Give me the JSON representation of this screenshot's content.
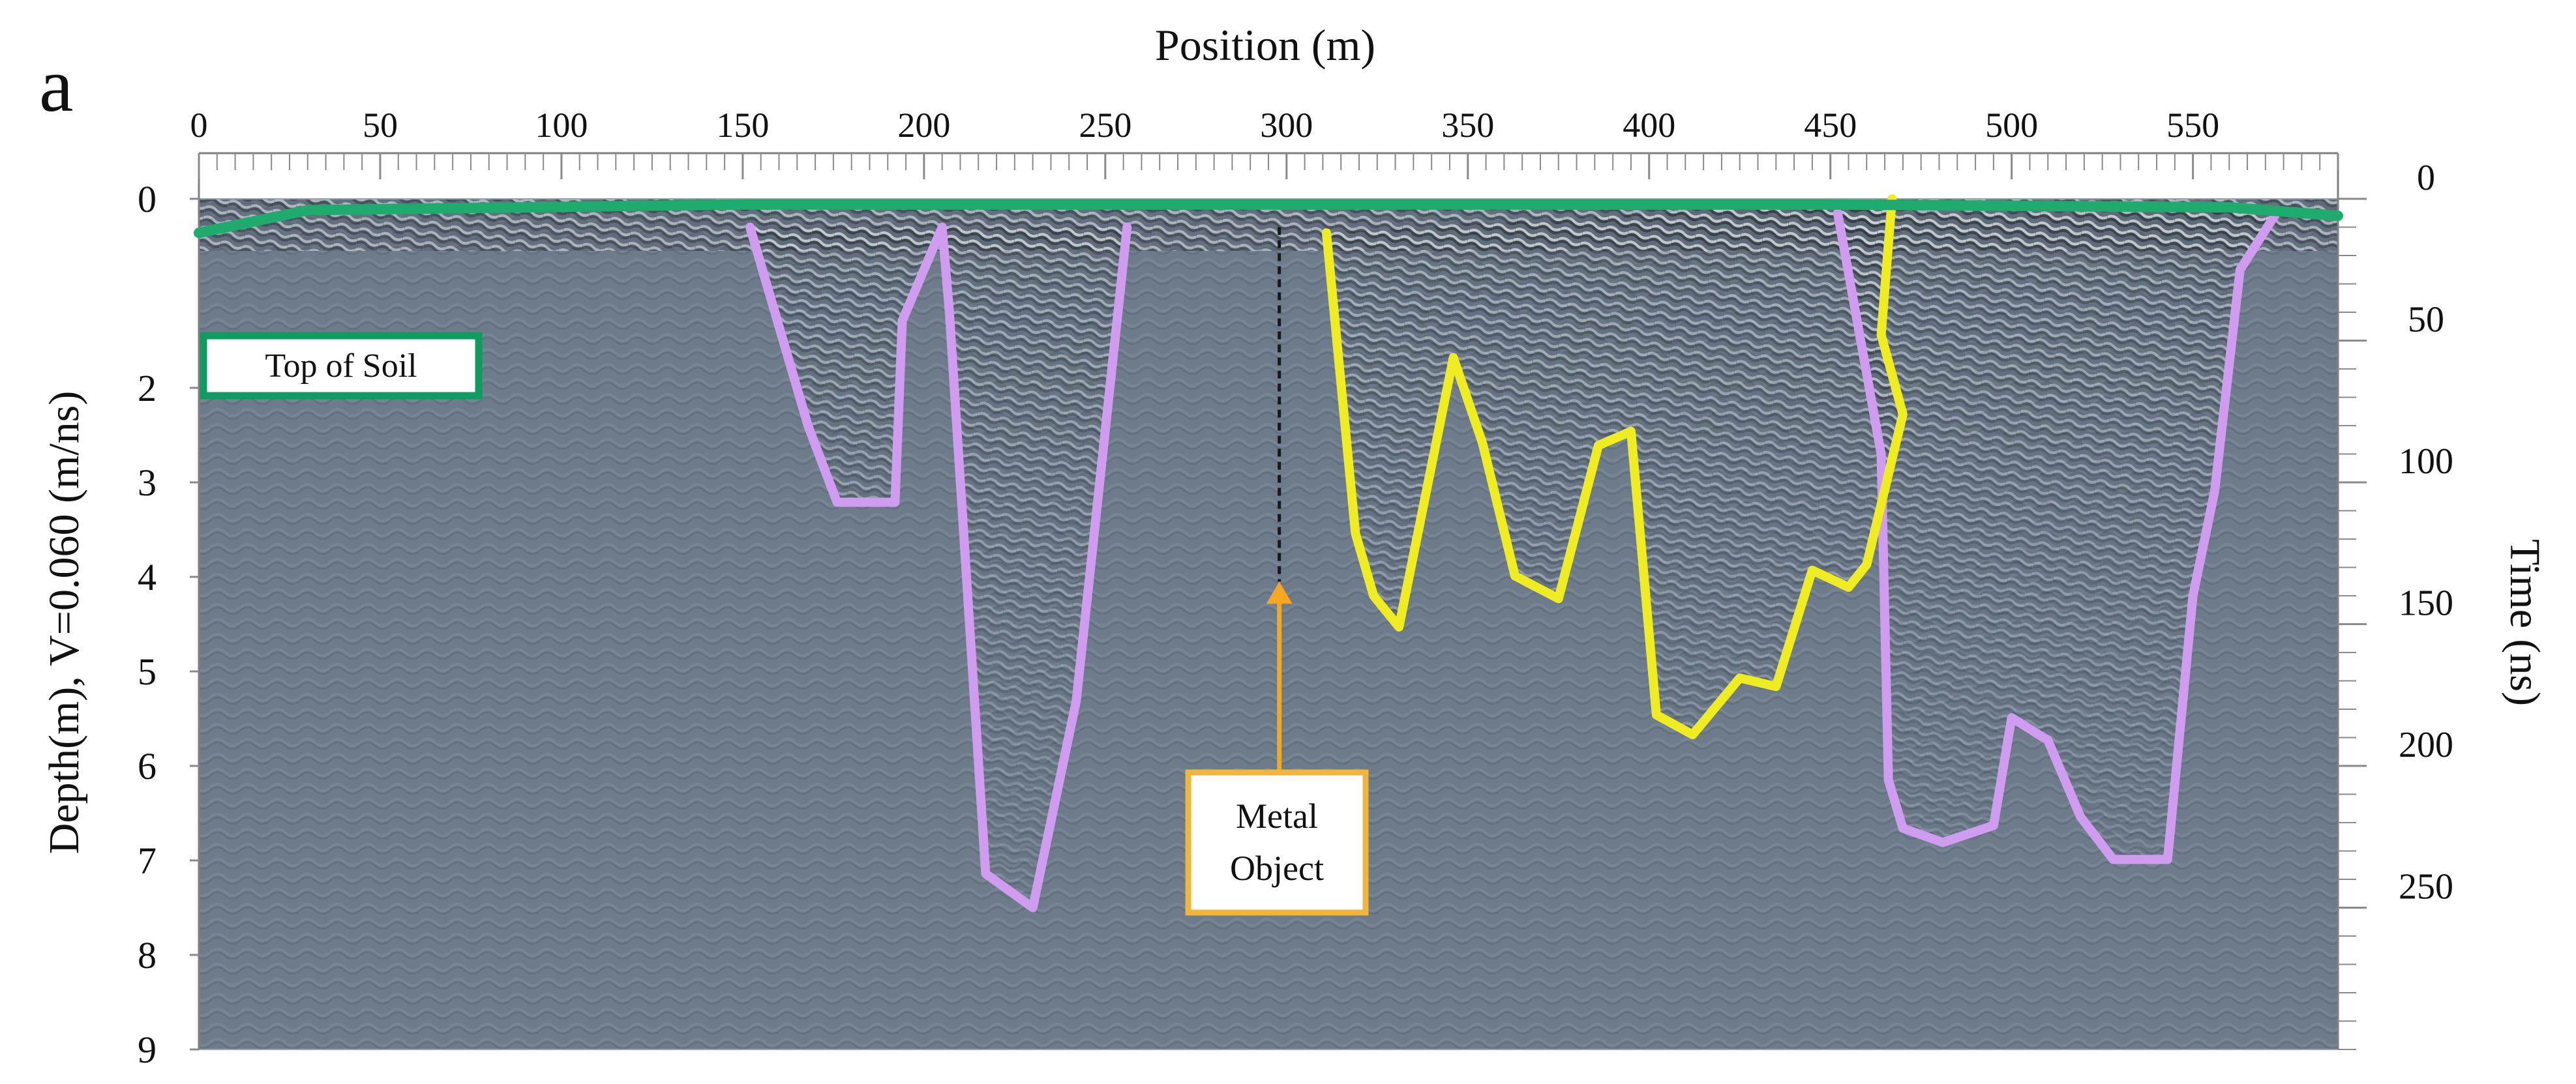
{
  "chart_data": {
    "type": "radargram",
    "panel_label": "a",
    "x_axis": {
      "label": "Position (m)",
      "range": [
        0,
        590
      ],
      "ticks": [
        0,
        50,
        100,
        150,
        200,
        250,
        300,
        350,
        400,
        450,
        500,
        550
      ],
      "minor_step": 5,
      "position": "top"
    },
    "y_axis_left": {
      "label": "Depth(m), V=0.060 (m/ns)",
      "range": [
        0,
        9
      ],
      "ticks": [
        0,
        2,
        3,
        4,
        5,
        6,
        7,
        8,
        9
      ],
      "tick_labels": [
        "0",
        "2",
        "3",
        "4",
        "5",
        "6",
        "7",
        "8",
        "9"
      ]
    },
    "y_axis_right": {
      "label": "Time (ns)",
      "range": [
        0,
        300
      ],
      "ticks": [
        0,
        50,
        100,
        150,
        200,
        250
      ],
      "minor_step": 10
    },
    "colors": {
      "background": "#6d7b8b",
      "surface_line": "#1faa6e",
      "pink_outline": "#cf9cf0",
      "yellow_outline": "#f0ec22",
      "arrow": "#f5a623",
      "label_box_border_green": "#0f9b62",
      "label_box_border_orange": "#f0b53a"
    },
    "annotations": [
      {
        "text": "Top of Soil",
        "border": "green",
        "anchor": [
          2,
          89
        ]
      },
      {
        "text_lines": [
          "Metal",
          "Object"
        ],
        "border": "orange",
        "anchor": [
          298,
          225
        ]
      }
    ],
    "arrow": {
      "from": [
        298,
        215
      ],
      "to": [
        298,
        135
      ]
    },
    "surface_line": [
      [
        0,
        12
      ],
      [
        30,
        4
      ],
      [
        150,
        2
      ],
      [
        300,
        2
      ],
      [
        450,
        2
      ],
      [
        560,
        3
      ],
      [
        590,
        6
      ]
    ],
    "pink_outlines": [
      [
        [
          152,
          10
        ],
        [
          168,
          80
        ],
        [
          176,
          107
        ],
        [
          192,
          107
        ],
        [
          194,
          43
        ],
        [
          205,
          10
        ],
        [
          207,
          40
        ],
        [
          217,
          238
        ],
        [
          230,
          250
        ],
        [
          242,
          177
        ],
        [
          256,
          10
        ]
      ],
      [
        [
          452,
          5
        ],
        [
          464,
          90
        ],
        [
          466,
          205
        ],
        [
          470,
          222
        ],
        [
          481,
          227
        ],
        [
          495,
          221
        ],
        [
          500,
          183
        ],
        [
          510,
          191
        ],
        [
          519,
          218
        ],
        [
          528,
          233
        ],
        [
          543,
          233
        ],
        [
          550,
          140
        ],
        [
          556,
          103
        ],
        [
          563,
          25
        ],
        [
          573,
          5
        ]
      ]
    ],
    "yellow_outline": [
      [
        311,
        12
      ],
      [
        319,
        118
      ],
      [
        324,
        140
      ],
      [
        331,
        151
      ],
      [
        346,
        56
      ],
      [
        354,
        86
      ],
      [
        363,
        133
      ],
      [
        375,
        141
      ],
      [
        386,
        87
      ],
      [
        395,
        82
      ],
      [
        402,
        182
      ],
      [
        412,
        189
      ],
      [
        425,
        169
      ],
      [
        435,
        172
      ],
      [
        445,
        131
      ],
      [
        455,
        137
      ],
      [
        460,
        129
      ],
      [
        470,
        76
      ],
      [
        464,
        48
      ],
      [
        467,
        0
      ]
    ]
  }
}
